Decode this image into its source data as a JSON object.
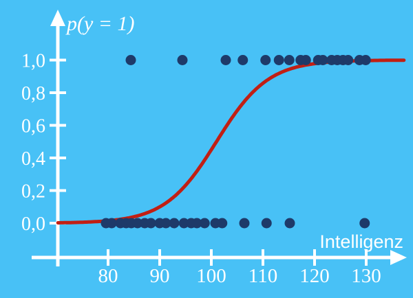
{
  "chart_data": {
    "type": "scatter",
    "title": "p(y = 1)",
    "xlabel": "Intelligenz",
    "ylabel": "p(y = 1)",
    "xlim": [
      70,
      137.5
    ],
    "ylim": [
      0,
      1
    ],
    "grid": false,
    "legend": false,
    "x_ticks": [
      {
        "value": 80,
        "label": "80"
      },
      {
        "value": 90,
        "label": "90"
      },
      {
        "value": 100,
        "label": "100"
      },
      {
        "value": 110,
        "label": "110"
      },
      {
        "value": 120,
        "label": "120"
      },
      {
        "value": 130,
        "label": "130"
      }
    ],
    "y_ticks": [
      {
        "value": 0.0,
        "label": "0,0"
      },
      {
        "value": 0.2,
        "label": "0,2"
      },
      {
        "value": 0.4,
        "label": "0,4"
      },
      {
        "value": 0.6,
        "label": "0,6"
      },
      {
        "value": 0.8,
        "label": "0,8"
      },
      {
        "value": 1.0,
        "label": "1,0"
      }
    ],
    "series": [
      {
        "name": "observations_y1",
        "type": "scatter",
        "y": 1,
        "x": [
          84.4,
          94.4,
          102.8,
          106.1,
          110.5,
          113.1,
          115.1,
          117.3,
          118.3,
          120.7,
          121.6,
          123.3,
          124.4,
          125.5,
          126.5,
          128.7,
          129.9
        ]
      },
      {
        "name": "observations_y0",
        "type": "scatter",
        "y": 0,
        "x": [
          79.6,
          80.7,
          82.4,
          83.5,
          84.5,
          85.7,
          87.1,
          88.3,
          90.0,
          91.2,
          92.8,
          94.7,
          96.1,
          97.2,
          98.7,
          100.8,
          102.1,
          106.4,
          110.7,
          115.2,
          129.7
        ]
      },
      {
        "name": "logistic_curve",
        "type": "line",
        "model": "logistic",
        "x0": 101,
        "k": 0.2,
        "x_range": [
          70.3,
          137.4
        ]
      }
    ],
    "colors": {
      "background": "#48C1F6",
      "axis": "#FFFFFF",
      "text": "#FFFFFF",
      "points": "#1E3A69",
      "curve": "#C11F14"
    }
  }
}
